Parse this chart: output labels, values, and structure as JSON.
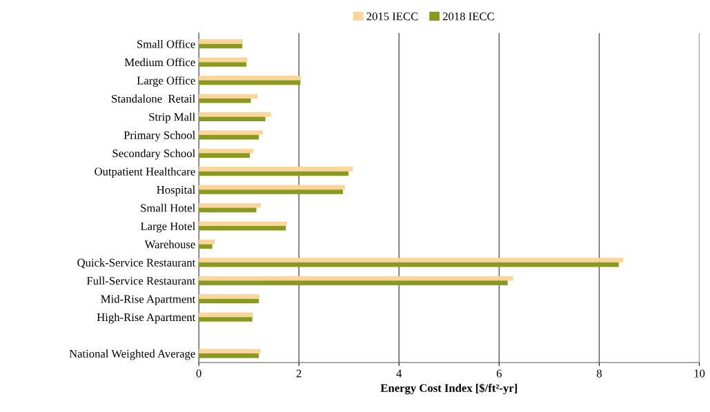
{
  "chart_data": {
    "type": "bar",
    "orientation": "horizontal",
    "categories": [
      "Small Office",
      "Medium Office",
      "Large Office",
      "Standalone  Retail",
      "Strip Mall",
      "Primary School",
      "Secondary School",
      "Outpatient Healthcare",
      "Hospital",
      "Small Hotel",
      "Large Hotel",
      "Warehouse",
      "Quick-Service Restaurant",
      "Full-Service Restaurant",
      "Mid-Rise Apartment",
      "High-Rise Apartment",
      null,
      "National Weighted Average"
    ],
    "series": [
      {
        "name": "2015 IECC",
        "color": "#fcd59a",
        "values": [
          0.88,
          0.97,
          2.04,
          1.17,
          1.44,
          1.28,
          1.09,
          3.08,
          2.92,
          1.24,
          1.76,
          0.32,
          8.48,
          6.28,
          1.21,
          1.08,
          null,
          1.24
        ]
      },
      {
        "name": "2018 IECC",
        "color": "#8a9a1e",
        "values": [
          0.87,
          0.95,
          2.03,
          1.04,
          1.33,
          1.2,
          1.02,
          2.99,
          2.88,
          1.15,
          1.74,
          0.27,
          8.39,
          6.17,
          1.2,
          1.07,
          null,
          1.2
        ]
      }
    ],
    "xlabel": "Energy Cost Index [$/ft²-yr]",
    "xlim": [
      0,
      10
    ],
    "xticks": [
      0,
      2,
      4,
      6,
      8,
      10
    ],
    "grid": "x",
    "legend": "top"
  }
}
